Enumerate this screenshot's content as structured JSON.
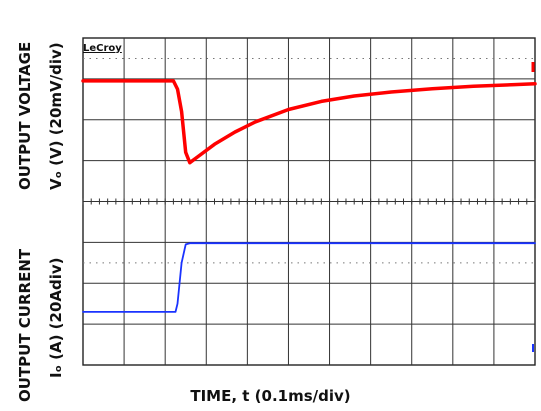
{
  "chart_data": {
    "type": "line",
    "brand": "LeCroy",
    "xlabel": "TIME, t (0.1ms/div)",
    "grid": true,
    "x_divisions": 11,
    "x_unit": "div",
    "panels": [
      {
        "name": "voltage",
        "ylabel": [
          "OUTPUT VOLTAGE",
          "Vₒ (V) (20mV/div)"
        ],
        "y_divisions": 4,
        "color": "#ff0000",
        "series": [
          {
            "x": 0,
            "y": 2.95
          },
          {
            "x": 2.2,
            "y": 2.95
          },
          {
            "x": 2.3,
            "y": 2.75
          },
          {
            "x": 2.4,
            "y": 2.2
          },
          {
            "x": 2.5,
            "y": 1.2
          },
          {
            "x": 2.6,
            "y": 0.95
          },
          {
            "x": 2.8,
            "y": 1.1
          },
          {
            "x": 3.2,
            "y": 1.4
          },
          {
            "x": 3.7,
            "y": 1.7
          },
          {
            "x": 4.2,
            "y": 1.95
          },
          {
            "x": 5.0,
            "y": 2.25
          },
          {
            "x": 5.8,
            "y": 2.45
          },
          {
            "x": 6.6,
            "y": 2.58
          },
          {
            "x": 7.5,
            "y": 2.68
          },
          {
            "x": 8.5,
            "y": 2.76
          },
          {
            "x": 9.5,
            "y": 2.82
          },
          {
            "x": 10.5,
            "y": 2.86
          },
          {
            "x": 11.0,
            "y": 2.88
          }
        ]
      },
      {
        "name": "current",
        "ylabel": [
          "OUTPUT CURRENT",
          "Iₒ (A) (20Adiv)"
        ],
        "y_divisions": 4,
        "color": "#1a33ff",
        "series": [
          {
            "x": 0,
            "y": 1.3
          },
          {
            "x": 2.25,
            "y": 1.3
          },
          {
            "x": 2.3,
            "y": 1.5
          },
          {
            "x": 2.4,
            "y": 2.5
          },
          {
            "x": 2.5,
            "y": 2.95
          },
          {
            "x": 2.6,
            "y": 2.98
          },
          {
            "x": 11.0,
            "y": 2.98
          }
        ]
      }
    ]
  }
}
